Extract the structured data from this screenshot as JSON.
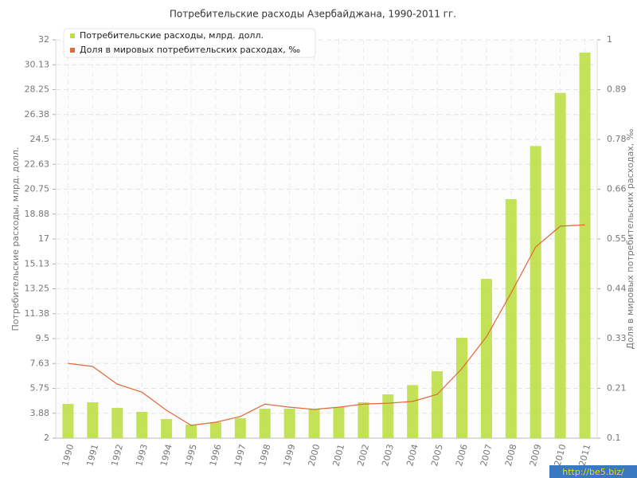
{
  "chart_data": {
    "type": "bar_line",
    "title": "Потребительские расходы Азербайджана, 1990-2011 гг.",
    "y_label": "Потребительские расходы, млрд. долл.",
    "y2_label": "Доля в мировых потребительских расходах, ‰",
    "watermark": "http://be5.biz/",
    "categories": [
      "1990",
      "1991",
      "1992",
      "1993",
      "1994",
      "1995",
      "1996",
      "1997",
      "1998",
      "1999",
      "2000",
      "2001",
      "2002",
      "2003",
      "2004",
      "2005",
      "2006",
      "2007",
      "2008",
      "2009",
      "2010",
      "2011"
    ],
    "series": [
      {
        "name": "Потребительские расходы, млрд. долл.",
        "color": "#bddf45",
        "type": "bar",
        "values": [
          4.58,
          4.7,
          4.28,
          3.98,
          3.44,
          3.02,
          3.2,
          3.5,
          4.22,
          4.22,
          4.2,
          4.34,
          4.7,
          5.3,
          6.0,
          7.04,
          9.56,
          14.0,
          20.0,
          24.0,
          28.0,
          31.04
        ]
      },
      {
        "name": "Доля в мировых потребительских расходах, ‰",
        "color": "#e0683a",
        "type": "line",
        "axis": "y2",
        "values": [
          0.269,
          0.262,
          0.222,
          0.204,
          0.163,
          0.129,
          0.136,
          0.149,
          0.177,
          0.17,
          0.165,
          0.17,
          0.177,
          0.179,
          0.183,
          0.199,
          0.257,
          0.329,
          0.428,
          0.532,
          0.579,
          0.582
        ]
      }
    ],
    "ylim": [
      2,
      32
    ],
    "yticks": [
      2,
      {
        "value": 3.875,
        "label": "3.88"
      },
      5.75,
      {
        "value": 7.625,
        "label": "7.63"
      },
      9.5,
      {
        "value": 11.375,
        "label": "11.38"
      },
      13.25,
      {
        "value": 15.125,
        "label": "15.13"
      },
      17,
      {
        "value": 18.875,
        "label": "18.88"
      },
      20.75,
      {
        "value": 22.625,
        "label": "22.63"
      },
      24.5,
      {
        "value": 26.375,
        "label": "26.38"
      },
      28.25,
      {
        "value": 30.125,
        "label": "30.13"
      },
      32
    ],
    "y2lim": [
      0.1,
      1
    ],
    "y2ticks": [
      0.1,
      {
        "value": 0.2125,
        "label": "0.21"
      },
      {
        "value": 0.325,
        "label": "0.33"
      },
      {
        "value": 0.4375,
        "label": "0.44"
      },
      0.55,
      {
        "value": 0.6625,
        "label": "0.66"
      },
      {
        "value": 0.775,
        "label": "0.78"
      },
      {
        "value": 0.8875,
        "label": "0.89"
      },
      1
    ],
    "grid": true,
    "legend": "top-left"
  }
}
